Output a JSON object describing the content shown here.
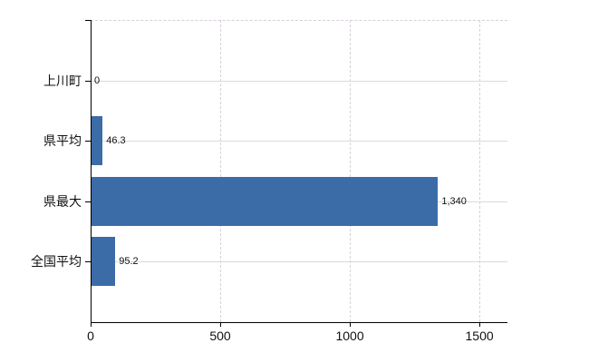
{
  "chart_data": {
    "type": "bar",
    "orientation": "horizontal",
    "title": "",
    "categories": [
      "上川町",
      "県平均",
      "県最大",
      "全国平均"
    ],
    "values": [
      0,
      46.3,
      1340,
      95.2
    ],
    "value_labels": [
      "0",
      "46.3",
      "1,340",
      "95.2"
    ],
    "x_ticks": [
      0,
      500,
      1000,
      1500
    ],
    "x_tick_labels": [
      "0",
      "500",
      "1000",
      "1500"
    ],
    "xlim": [
      0,
      1608
    ],
    "bar_color": "#3b6ca8",
    "axis_color": "#000000",
    "grid": {
      "vertical_style": "dashed",
      "vertical_color": "#d9cedb",
      "horizontal_style": "solid",
      "horizontal_color": "#d6ddd4",
      "top_border": "dashed"
    },
    "background": "#ffffff",
    "legend": "none"
  }
}
